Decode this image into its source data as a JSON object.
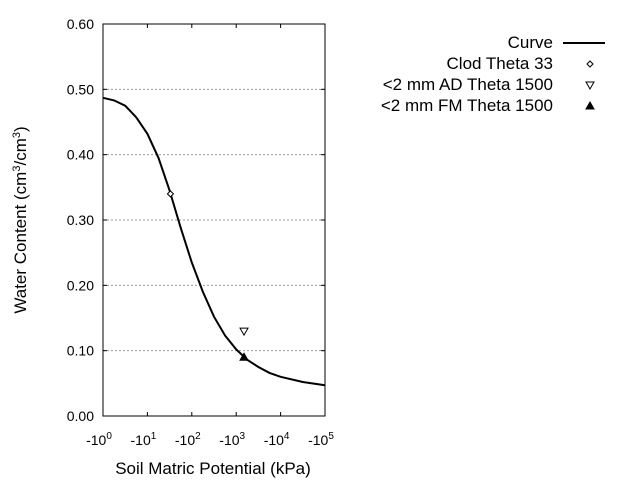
{
  "chart_data": {
    "type": "line",
    "xlabel": "Soil Matric Potential (kPa)",
    "ylabel_main": "Water Content (cm",
    "ylabel_sup1": "3",
    "ylabel_mid": "/cm",
    "ylabel_sup2": "3",
    "ylabel_end": ")",
    "x_scale": "log (negative)",
    "xlim": [
      -1,
      -100000
    ],
    "ylim": [
      0,
      0.6
    ],
    "x_ticks": [
      {
        "base": "-10",
        "exp": "0"
      },
      {
        "base": "-10",
        "exp": "1"
      },
      {
        "base": "-10",
        "exp": "2"
      },
      {
        "base": "-10",
        "exp": "3"
      },
      {
        "base": "-10",
        "exp": "4"
      },
      {
        "base": "-10",
        "exp": "5"
      }
    ],
    "y_ticks": [
      "0.00",
      "0.10",
      "0.20",
      "0.30",
      "0.40",
      "0.50",
      "0.60"
    ],
    "grid": "horizontal dotted",
    "legend_position": "right",
    "series": [
      {
        "name": "Curve",
        "kind": "line",
        "x": [
          -1,
          -1.78,
          -3.16,
          -5.62,
          -10,
          -17.8,
          -31.6,
          -56.2,
          -100,
          -178,
          -316,
          -562,
          -1000,
          -1778,
          -3162,
          -5623,
          -10000,
          -31623,
          -100000
        ],
        "y": [
          0.487,
          0.483,
          0.475,
          0.457,
          0.432,
          0.395,
          0.345,
          0.288,
          0.235,
          0.19,
          0.152,
          0.123,
          0.102,
          0.086,
          0.075,
          0.066,
          0.06,
          0.052,
          0.047
        ]
      },
      {
        "name": "Clod Theta 33",
        "kind": "diamond-open",
        "x": [
          -33
        ],
        "y": [
          0.34
        ]
      },
      {
        "name": "<2 mm AD Theta 1500",
        "kind": "triangle-down-open",
        "x": [
          -1500
        ],
        "y": [
          0.13
        ]
      },
      {
        "name": "<2 mm FM Theta 1500",
        "kind": "triangle-up-filled",
        "x": [
          -1500
        ],
        "y": [
          0.09
        ]
      }
    ]
  }
}
